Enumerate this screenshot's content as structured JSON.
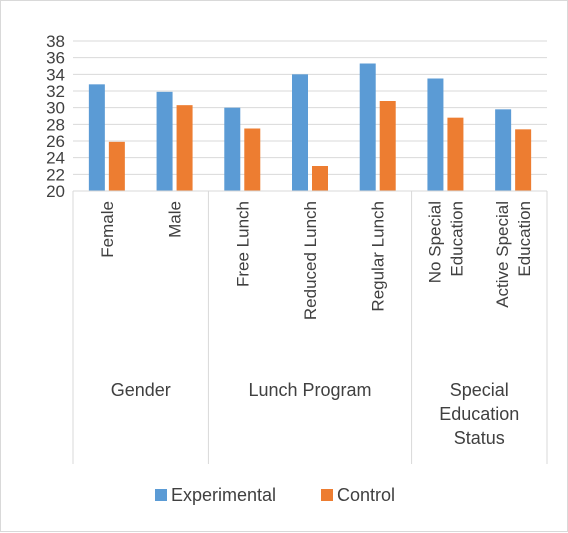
{
  "chart_data": {
    "type": "bar",
    "title": "",
    "xlabel": "",
    "ylabel": "",
    "ylim": [
      20,
      38
    ],
    "yticks": [
      20,
      22,
      24,
      26,
      28,
      30,
      32,
      34,
      36,
      38
    ],
    "grid": true,
    "legend_position": "bottom",
    "categories": [
      [
        "Female"
      ],
      [
        "Male"
      ],
      [
        "Free Lunch"
      ],
      [
        "Reduced Lunch"
      ],
      [
        "Regular Lunch"
      ],
      [
        "No Special",
        "Education"
      ],
      [
        "Active Special",
        "Education"
      ]
    ],
    "groups": [
      {
        "label": [
          "Gender"
        ],
        "span": 2
      },
      {
        "label": [
          "Lunch Program"
        ],
        "span": 3
      },
      {
        "label": [
          "Special",
          "Education",
          "Status"
        ],
        "span": 2
      }
    ],
    "series": [
      {
        "name": "Experimental",
        "color": "#5b9bd5",
        "values": [
          32.8,
          31.9,
          30.0,
          34.0,
          35.3,
          33.5,
          29.8
        ]
      },
      {
        "name": "Control",
        "color": "#ed7d31",
        "values": [
          25.9,
          30.3,
          27.5,
          23.0,
          30.8,
          28.8,
          27.4
        ]
      }
    ]
  }
}
